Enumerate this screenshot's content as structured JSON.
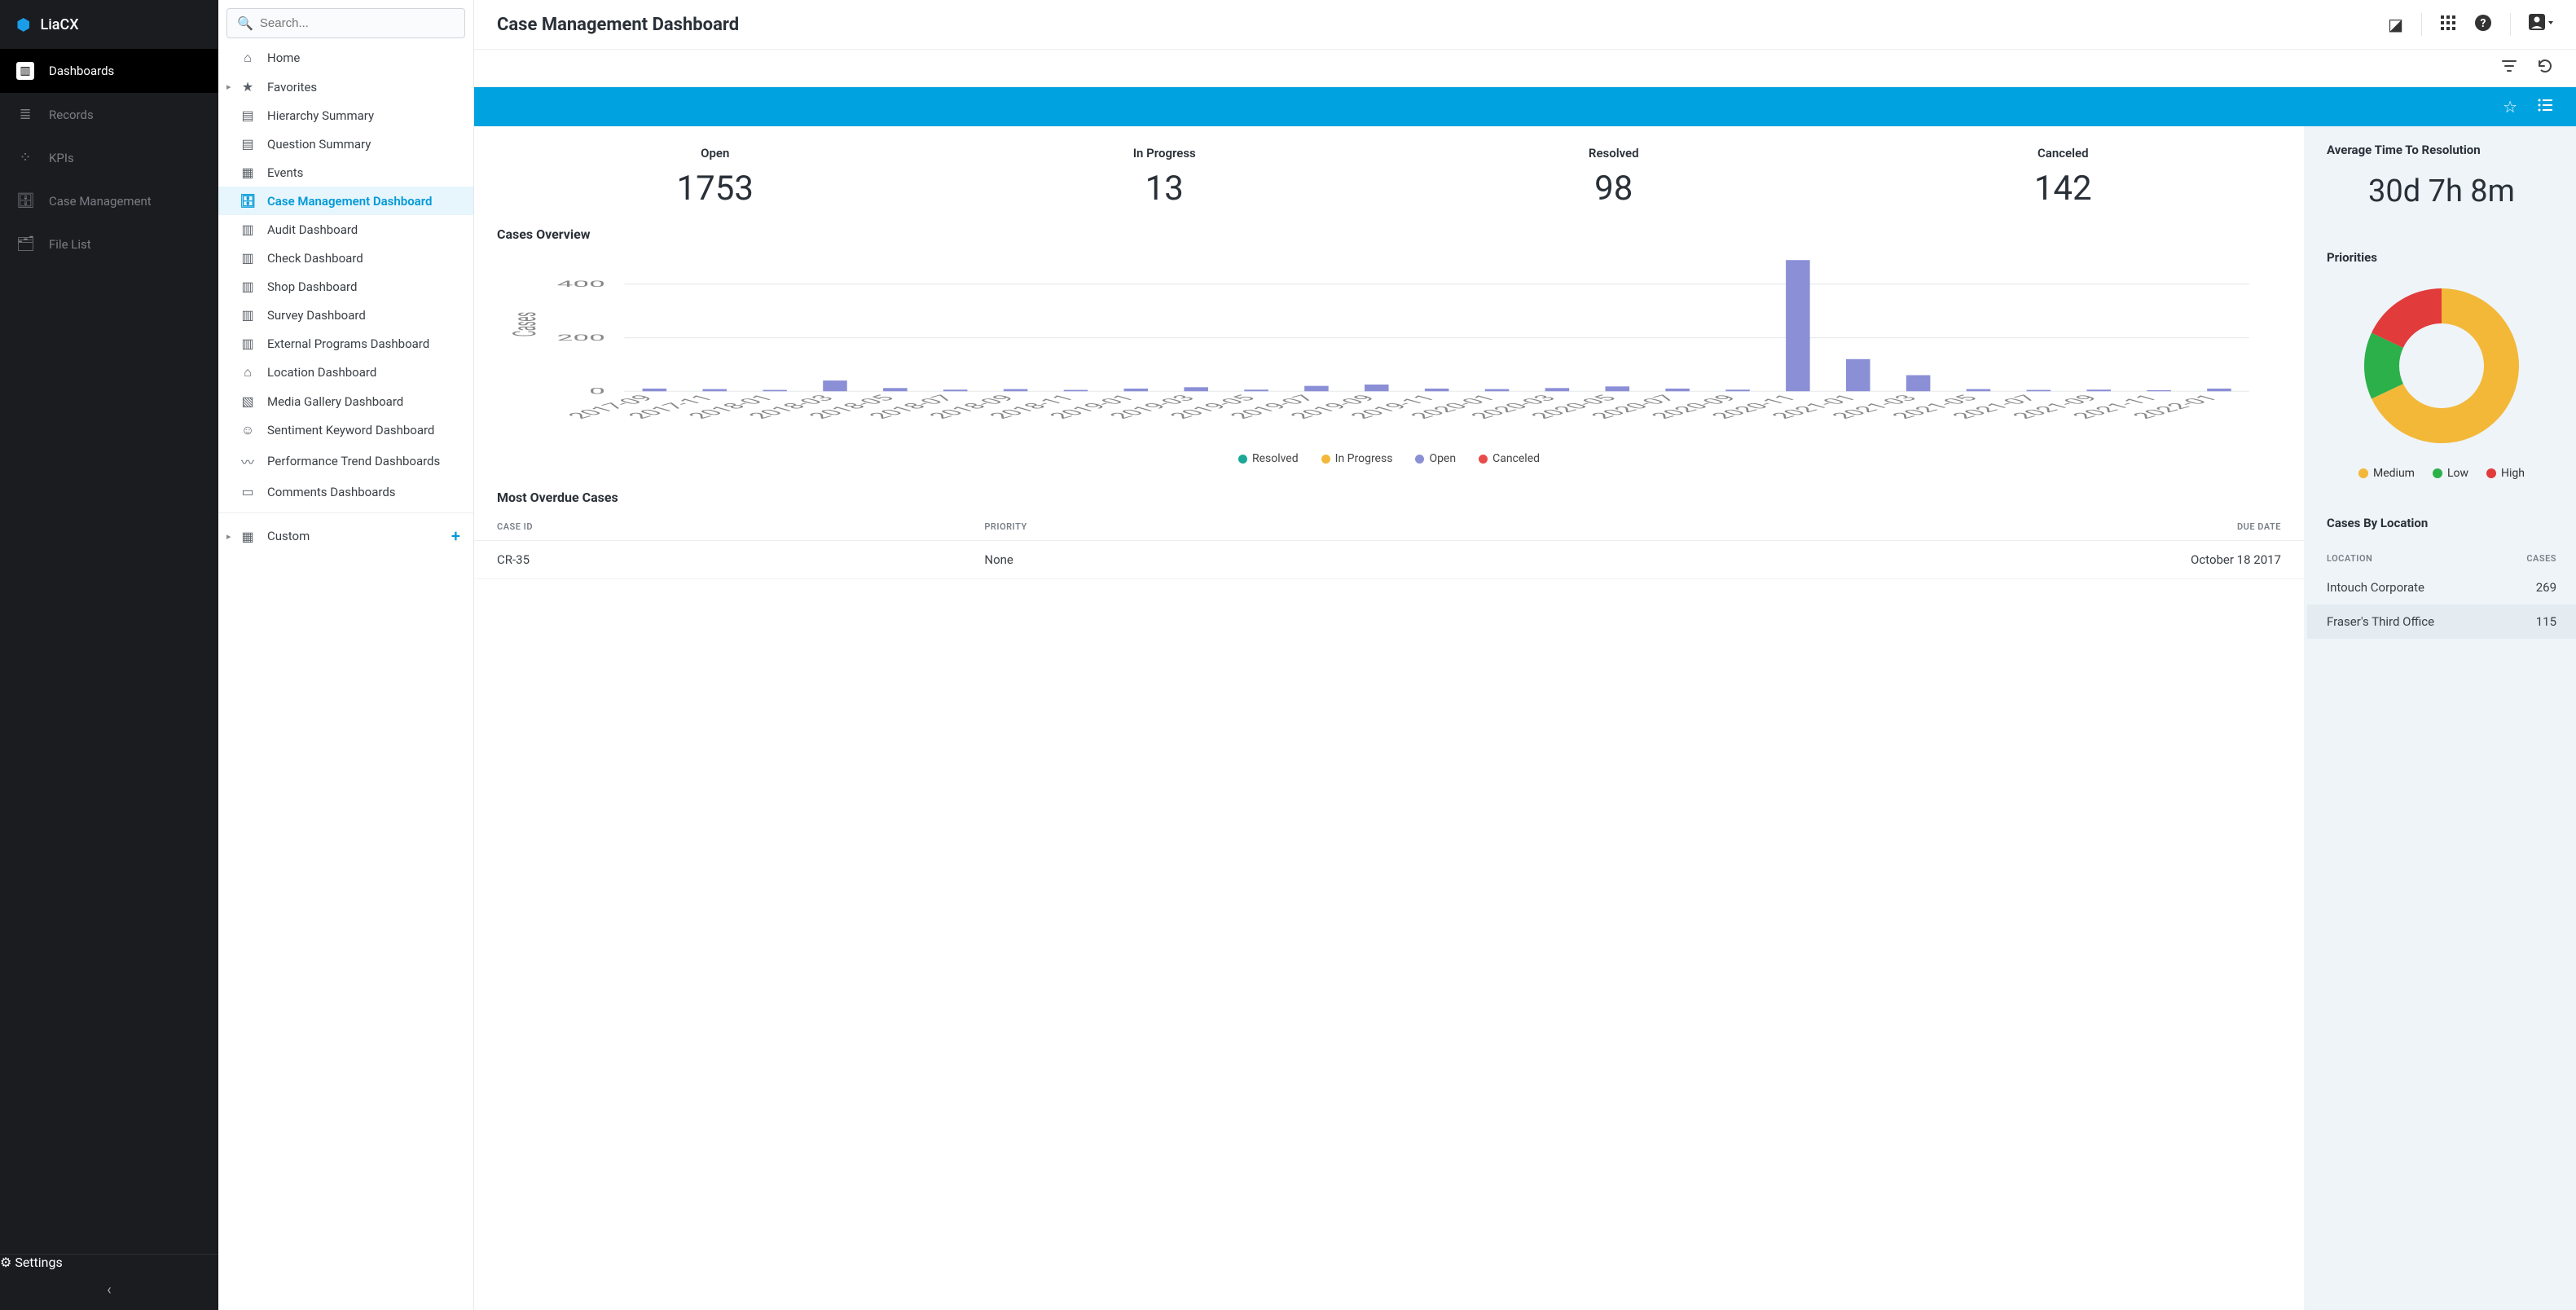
{
  "brand": "LiaCX",
  "sidebar_dark": {
    "items": [
      {
        "icon": "bar-chart",
        "label": "Dashboards",
        "active": true
      },
      {
        "icon": "list",
        "label": "Records"
      },
      {
        "icon": "bubbles",
        "label": "KPIs"
      },
      {
        "icon": "briefcase",
        "label": "Case Management"
      },
      {
        "icon": "folder",
        "label": "File List"
      }
    ],
    "settings_label": "Settings"
  },
  "search_placeholder": "Search...",
  "tree": [
    {
      "icon": "home",
      "label": "Home"
    },
    {
      "icon": "star",
      "label": "Favorites",
      "caret": true
    },
    {
      "icon": "hierarchy",
      "label": "Hierarchy Summary"
    },
    {
      "icon": "doc",
      "label": "Question Summary"
    },
    {
      "icon": "calendar",
      "label": "Events"
    },
    {
      "icon": "briefcase",
      "label": "Case Management Dashboard",
      "selected": true
    },
    {
      "icon": "dash",
      "label": "Audit Dashboard"
    },
    {
      "icon": "dash",
      "label": "Check Dashboard"
    },
    {
      "icon": "dash",
      "label": "Shop Dashboard"
    },
    {
      "icon": "dash",
      "label": "Survey Dashboard"
    },
    {
      "icon": "dash",
      "label": "External Programs Dashboard"
    },
    {
      "icon": "store",
      "label": "Location Dashboard"
    },
    {
      "icon": "image",
      "label": "Media Gallery Dashboard"
    },
    {
      "icon": "smile",
      "label": "Sentiment Keyword Dashboard"
    },
    {
      "icon": "trend",
      "label": "Performance Trend Dashboards"
    },
    {
      "icon": "comment",
      "label": "Comments Dashboards"
    }
  ],
  "custom_label": "Custom",
  "header": {
    "title": "Case Management Dashboard"
  },
  "kpis": [
    {
      "label": "Open",
      "value": "1753"
    },
    {
      "label": "In Progress",
      "value": "13"
    },
    {
      "label": "Resolved",
      "value": "98"
    },
    {
      "label": "Canceled",
      "value": "142"
    }
  ],
  "chart": {
    "title": "Cases Overview",
    "y_label": "Cases",
    "y_ticks": [
      0,
      200,
      400
    ],
    "ylim": [
      0,
      500
    ],
    "categories": [
      "2017-09",
      "2017-11",
      "2018-01",
      "2018-03",
      "2018-05",
      "2018-07",
      "2018-09",
      "2018-11",
      "2019-01",
      "2019-03",
      "2019-05",
      "2019-07",
      "2019-09",
      "2019-11",
      "2020-01",
      "2020-03",
      "2020-05",
      "2020-07",
      "2020-09",
      "2020-11",
      "2021-01",
      "2021-03",
      "2021-05",
      "2021-07",
      "2021-09",
      "2021-11",
      "2022-01"
    ],
    "bars": [
      {
        "i": 0,
        "v": 10,
        "c": "#8b8fd6"
      },
      {
        "i": 1,
        "v": 8,
        "c": "#8b8fd6"
      },
      {
        "i": 2,
        "v": 5,
        "c": "#8b8fd6"
      },
      {
        "i": 3,
        "v": 40,
        "c": "#8b8fd6"
      },
      {
        "i": 4,
        "v": 12,
        "c": "#8b8fd6"
      },
      {
        "i": 5,
        "v": 6,
        "c": "#8b8fd6"
      },
      {
        "i": 6,
        "v": 8,
        "c": "#8b8fd6"
      },
      {
        "i": 7,
        "v": 5,
        "c": "#8b8fd6"
      },
      {
        "i": 8,
        "v": 10,
        "c": "#8b8fd6"
      },
      {
        "i": 9,
        "v": 15,
        "c": "#8b8fd6"
      },
      {
        "i": 10,
        "v": 6,
        "c": "#8b8fd6"
      },
      {
        "i": 11,
        "v": 20,
        "c": "#8b8fd6"
      },
      {
        "i": 12,
        "v": 25,
        "c": "#8b8fd6"
      },
      {
        "i": 13,
        "v": 10,
        "c": "#8b8fd6"
      },
      {
        "i": 14,
        "v": 8,
        "c": "#8b8fd6"
      },
      {
        "i": 15,
        "v": 12,
        "c": "#8b8fd6"
      },
      {
        "i": 16,
        "v": 18,
        "c": "#8b8fd6"
      },
      {
        "i": 17,
        "v": 10,
        "c": "#8b8fd6"
      },
      {
        "i": 18,
        "v": 6,
        "c": "#8b8fd6"
      },
      {
        "i": 19,
        "v": 490,
        "c": "#8b8fd6"
      },
      {
        "i": 20,
        "v": 120,
        "c": "#8b8fd6"
      },
      {
        "i": 21,
        "v": 60,
        "c": "#8b8fd6"
      },
      {
        "i": 22,
        "v": 8,
        "c": "#8b8fd6"
      },
      {
        "i": 23,
        "v": 5,
        "c": "#8b8fd6"
      },
      {
        "i": 24,
        "v": 6,
        "c": "#8b8fd6"
      },
      {
        "i": 25,
        "v": 4,
        "c": "#8b8fd6"
      },
      {
        "i": 26,
        "v": 10,
        "c": "#8b8fd6"
      }
    ],
    "legend": [
      {
        "label": "Resolved",
        "color": "#1aa898"
      },
      {
        "label": "In Progress",
        "color": "#f3b838"
      },
      {
        "label": "Open",
        "color": "#8b8fd6"
      },
      {
        "label": "Canceled",
        "color": "#e94b4b"
      }
    ],
    "grid_color": "#e6e9ec",
    "background": "#ffffff"
  },
  "overdue": {
    "title": "Most Overdue Cases",
    "columns": [
      "CASE ID",
      "PRIORITY",
      "DUE DATE"
    ],
    "rows": [
      {
        "id": "CR-35",
        "priority": "None",
        "due": "October 18 2017"
      }
    ]
  },
  "avg_resolution": {
    "title": "Average Time To Resolution",
    "value": "30d 7h 8m"
  },
  "priorities": {
    "title": "Priorities",
    "slices": [
      {
        "label": "Medium",
        "color": "#f3b838",
        "pct": 68
      },
      {
        "label": "Low",
        "color": "#2bb04a",
        "pct": 14
      },
      {
        "label": "High",
        "color": "#e23b3b",
        "pct": 18
      }
    ],
    "inner_radius": 52,
    "outer_radius": 95
  },
  "by_location": {
    "title": "Cases By Location",
    "columns": [
      "LOCATION",
      "CASES"
    ],
    "rows": [
      {
        "loc": "Intouch Corporate",
        "n": "269"
      },
      {
        "loc": "Fraser's Third Office",
        "n": "115"
      }
    ]
  },
  "colors": {
    "accent": "#00a3e0",
    "dark_bg": "#1a1c20"
  }
}
